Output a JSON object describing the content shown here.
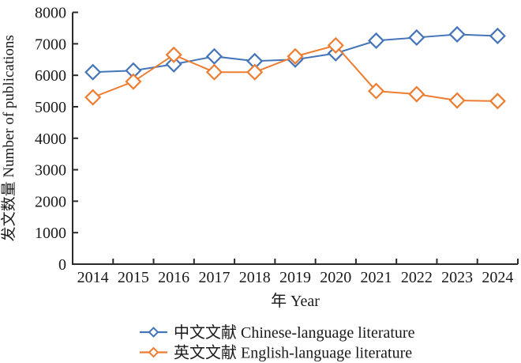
{
  "figure": {
    "background": "#ffffff",
    "text_color": "#1a1a1a",
    "axis_color": "#2b2b2b"
  },
  "chart_data": {
    "type": "line",
    "title": "",
    "categories": [
      "2014",
      "2015",
      "2016",
      "2017",
      "2018",
      "2019",
      "2020",
      "2021",
      "2022",
      "2023",
      "2024"
    ],
    "series": [
      {
        "name": "中文文献 Chinese-language literature",
        "color": "#4575b9",
        "marker": "diamond-open",
        "values": [
          6100,
          6150,
          6350,
          6600,
          6450,
          6500,
          6700,
          7100,
          7200,
          7300,
          7250
        ]
      },
      {
        "name": "英文文献 English-language literature",
        "color": "#ed7d31",
        "marker": "diamond-open",
        "values": [
          5300,
          5800,
          6650,
          6100,
          6100,
          6600,
          6950,
          5500,
          5400,
          5200,
          5180
        ]
      }
    ],
    "xlabel": "年 Year",
    "ylabel": "发文数量 Number of publications",
    "ylim": [
      0,
      8000
    ],
    "yticks": [
      0,
      1000,
      2000,
      3000,
      4000,
      5000,
      6000,
      7000,
      8000
    ],
    "grid": false,
    "legend_position": "bottom",
    "marker_fill": "#ffffff"
  }
}
